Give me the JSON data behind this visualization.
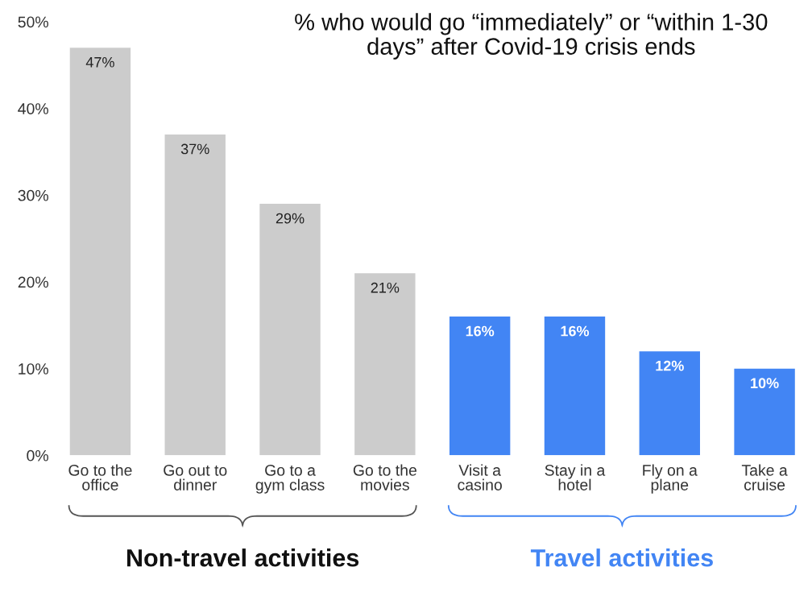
{
  "chart_data": {
    "type": "bar",
    "title": "% who would go “immediately” or “within 1-30\ndays” after Covid-19 crisis ends",
    "categories": [
      "Go to the\noffice",
      "Go out to\ndinner",
      "Go to a\ngym class",
      "Go to the\nmovies",
      "Visit a\ncasino",
      "Stay in a\nhotel",
      "Fly on a\nplane",
      "Take a\ncruise"
    ],
    "values": [
      47,
      37,
      29,
      21,
      16,
      16,
      12,
      10
    ],
    "value_labels": [
      "47%",
      "37%",
      "29%",
      "21%",
      "16%",
      "16%",
      "12%",
      "10%"
    ],
    "colors": [
      "#cccccc",
      "#cccccc",
      "#cccccc",
      "#cccccc",
      "#4285f4",
      "#4285f4",
      "#4285f4",
      "#4285f4"
    ],
    "ylim": [
      0,
      50
    ],
    "yticks": [
      {
        "value": 0,
        "label": "0%"
      },
      {
        "value": 10,
        "label": "10%"
      },
      {
        "value": 20,
        "label": "20%"
      },
      {
        "value": 30,
        "label": "30%"
      },
      {
        "value": 40,
        "label": "40%"
      },
      {
        "value": 50,
        "label": "50%"
      }
    ],
    "annotations": [
      "Non-travel activities",
      "Travel activities"
    ],
    "grid": false,
    "legend": false
  }
}
